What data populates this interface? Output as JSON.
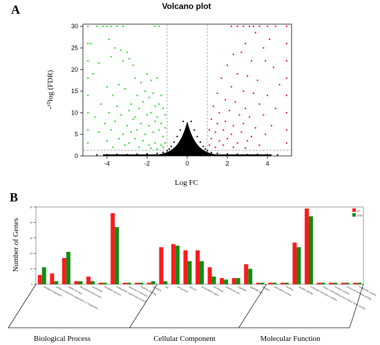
{
  "panel_a_label": "A",
  "panel_b_label": "B",
  "chart_data": [
    {
      "type": "scatter",
      "title": "Volcano plot",
      "xlabel": "Log FC",
      "ylabel": "-log10(FDR)",
      "ylabel_display": "-¹⁰log (FDR)",
      "xlim": [
        -5.2,
        5.2
      ],
      "ylim": [
        0,
        30.5
      ],
      "xticks": [
        -4,
        -2,
        0,
        2,
        4
      ],
      "xtick_labels": [
        "-4",
        "-2",
        "0",
        "2",
        "4"
      ],
      "yticks": [
        0,
        5,
        10,
        15,
        20,
        25,
        30
      ],
      "ytick_labels": [
        "0",
        "5",
        "10",
        "15",
        "20",
        "25",
        "30"
      ],
      "thresholds": {
        "logfc": [
          -1,
          1
        ],
        "neg_log10_fdr": 1.3
      },
      "series": [
        {
          "color": "#00e000",
          "points": [
            [
              -4.5,
              30
            ],
            [
              -4.2,
              30
            ],
            [
              -4.0,
              30
            ],
            [
              -3.8,
              30
            ],
            [
              -3.5,
              30
            ],
            [
              -3.2,
              30
            ],
            [
              -1.6,
              30
            ],
            [
              -1.4,
              30
            ],
            [
              -4.8,
              26
            ],
            [
              -3.9,
              27
            ],
            [
              -3.6,
              25
            ],
            [
              -3.3,
              24.5
            ],
            [
              -3.0,
              24
            ],
            [
              -3.2,
              22
            ],
            [
              -2.9,
              22.5
            ],
            [
              -3.8,
              23
            ],
            [
              -4.4,
              21.5
            ],
            [
              -4.7,
              19
            ],
            [
              -2.7,
              21
            ],
            [
              -2.6,
              18
            ],
            [
              -3.4,
              16.5
            ],
            [
              -2.3,
              17
            ],
            [
              -2.0,
              19
            ],
            [
              -1.8,
              17.5
            ],
            [
              -1.5,
              18
            ],
            [
              -4.0,
              16
            ],
            [
              -3.7,
              14
            ],
            [
              -3.1,
              15.5
            ],
            [
              -2.5,
              14
            ],
            [
              -2.1,
              15
            ],
            [
              -1.9,
              13.5
            ],
            [
              -1.7,
              14.5
            ],
            [
              -1.3,
              14
            ],
            [
              -4.3,
              12
            ],
            [
              -3.5,
              11.5
            ],
            [
              -2.8,
              12
            ],
            [
              -2.4,
              11
            ],
            [
              -2.2,
              12.5
            ],
            [
              -1.6,
              11.5
            ],
            [
              -1.4,
              12
            ],
            [
              -1.2,
              11
            ],
            [
              -4.6,
              9
            ],
            [
              -3.9,
              10
            ],
            [
              -3.3,
              9.5
            ],
            [
              -2.9,
              10.5
            ],
            [
              -2.6,
              9
            ],
            [
              -2.0,
              9.5
            ],
            [
              -1.8,
              10
            ],
            [
              -1.5,
              9
            ],
            [
              -1.1,
              9.5
            ],
            [
              -4.1,
              7.5
            ],
            [
              -3.6,
              8
            ],
            [
              -3.0,
              7
            ],
            [
              -2.7,
              8.5
            ],
            [
              -2.3,
              7.5
            ],
            [
              -1.9,
              7
            ],
            [
              -1.6,
              8
            ],
            [
              -1.3,
              7.5
            ],
            [
              -1.1,
              6.5
            ],
            [
              -4.4,
              5.5
            ],
            [
              -3.8,
              6
            ],
            [
              -3.2,
              5
            ],
            [
              -2.8,
              5.5
            ],
            [
              -2.5,
              6
            ],
            [
              -2.1,
              5
            ],
            [
              -1.7,
              5.5
            ],
            [
              -1.4,
              6
            ],
            [
              -1.2,
              4.5
            ],
            [
              -4.0,
              3.5
            ],
            [
              -3.4,
              4
            ],
            [
              -2.9,
              3
            ],
            [
              -2.6,
              4
            ],
            [
              -2.2,
              3.5
            ],
            [
              -1.9,
              2.5
            ],
            [
              -1.6,
              3
            ],
            [
              -1.3,
              2.5
            ],
            [
              -1.1,
              3
            ],
            [
              -3.7,
              2
            ],
            [
              -3.1,
              2.5
            ],
            [
              -2.4,
              2
            ],
            [
              -1.8,
              1.8
            ],
            [
              -1.5,
              1.6
            ],
            [
              -1.2,
              2
            ],
            [
              -4.95,
              30
            ],
            [
              -4.95,
              26
            ],
            [
              -4.95,
              22
            ],
            [
              -4.95,
              18
            ],
            [
              -4.95,
              14
            ],
            [
              -4.95,
              10
            ],
            [
              -4.95,
              6
            ],
            [
              -4.95,
              3
            ]
          ]
        },
        {
          "color": "#ff0000",
          "points": [
            [
              2.2,
              30
            ],
            [
              2.5,
              30
            ],
            [
              2.8,
              30
            ],
            [
              3.1,
              30
            ],
            [
              3.3,
              30
            ],
            [
              3.6,
              30
            ],
            [
              4.0,
              30
            ],
            [
              4.4,
              30
            ],
            [
              2.9,
              26
            ],
            [
              3.4,
              28.5
            ],
            [
              4.1,
              27
            ],
            [
              3.8,
              25
            ],
            [
              2.3,
              23.5
            ],
            [
              2.7,
              24
            ],
            [
              3.2,
              22
            ],
            [
              3.9,
              22
            ],
            [
              4.3,
              20.5
            ],
            [
              2.0,
              21
            ],
            [
              2.5,
              19
            ],
            [
              3.0,
              18.5
            ],
            [
              3.5,
              17.5
            ],
            [
              4.6,
              16.5
            ],
            [
              1.7,
              18
            ],
            [
              2.2,
              16
            ],
            [
              2.8,
              15
            ],
            [
              3.3,
              14.5
            ],
            [
              4.0,
              14
            ],
            [
              1.5,
              14.5
            ],
            [
              1.9,
              13
            ],
            [
              2.4,
              12.5
            ],
            [
              2.9,
              11
            ],
            [
              3.6,
              12
            ],
            [
              4.4,
              11
            ],
            [
              1.3,
              11.5
            ],
            [
              1.6,
              10
            ],
            [
              2.1,
              10.5
            ],
            [
              2.6,
              9.5
            ],
            [
              3.1,
              9
            ],
            [
              3.8,
              9.5
            ],
            [
              1.2,
              8.5
            ],
            [
              1.5,
              7.5
            ],
            [
              1.9,
              8
            ],
            [
              2.3,
              7
            ],
            [
              2.8,
              7.5
            ],
            [
              3.4,
              6.5
            ],
            [
              4.2,
              7
            ],
            [
              1.1,
              6
            ],
            [
              1.4,
              5.5
            ],
            [
              1.8,
              6
            ],
            [
              2.2,
              5
            ],
            [
              2.7,
              5.5
            ],
            [
              3.2,
              4.5
            ],
            [
              3.9,
              5
            ],
            [
              1.2,
              4
            ],
            [
              1.6,
              3.5
            ],
            [
              2.0,
              4
            ],
            [
              2.5,
              3
            ],
            [
              3.0,
              3.5
            ],
            [
              3.6,
              2.5
            ],
            [
              1.1,
              2.5
            ],
            [
              1.4,
              2
            ],
            [
              1.8,
              2.5
            ],
            [
              2.3,
              2
            ],
            [
              2.9,
              1.8
            ],
            [
              4.95,
              30
            ],
            [
              4.95,
              26
            ],
            [
              4.95,
              22
            ],
            [
              4.95,
              18
            ],
            [
              4.95,
              14
            ],
            [
              4.95,
              10
            ],
            [
              4.95,
              6
            ],
            [
              4.95,
              3
            ]
          ]
        },
        {
          "color": "#000000",
          "points": [
            [
              -0.2,
              8
            ],
            [
              0.2,
              8
            ],
            [
              -0.35,
              6
            ],
            [
              0.35,
              6
            ],
            [
              -0.5,
              4.5
            ],
            [
              0.5,
              4.5
            ],
            [
              -0.65,
              3.2
            ],
            [
              0.65,
              3.2
            ],
            [
              -0.8,
              2.2
            ],
            [
              0.8,
              2.2
            ],
            [
              -0.9,
              1.6
            ],
            [
              0.9,
              1.6
            ],
            [
              -1.0,
              1.2
            ],
            [
              1.0,
              1.2
            ],
            [
              -0.1,
              5
            ],
            [
              0.1,
              5
            ],
            [
              -0.3,
              3
            ],
            [
              0.3,
              3
            ],
            [
              -0.45,
              2
            ],
            [
              0.45,
              2
            ],
            [
              -0.6,
              1.2
            ],
            [
              0.6,
              1.2
            ],
            [
              -0.7,
              0.7
            ],
            [
              0.7,
              0.7
            ],
            [
              -1.2,
              0.8
            ],
            [
              1.2,
              0.8
            ],
            [
              -1.5,
              0.6
            ],
            [
              1.5,
              0.6
            ],
            [
              -2.0,
              0.5
            ],
            [
              2.0,
              0.5
            ],
            [
              -2.5,
              0.4
            ],
            [
              2.5,
              0.4
            ],
            [
              -3.0,
              0.3
            ],
            [
              3.0,
              0.3
            ],
            [
              -3.5,
              0.35
            ],
            [
              3.5,
              0.35
            ],
            [
              -4.0,
              0.3
            ],
            [
              4.0,
              0.3
            ],
            [
              -4.5,
              0.25
            ],
            [
              4.5,
              0.25
            ],
            [
              0,
              0.2
            ],
            [
              -0.25,
              0.5
            ],
            [
              0.25,
              0.5
            ]
          ]
        }
      ]
    },
    {
      "type": "bar",
      "ylabel": "Number of Genes",
      "ylim": [
        0,
        50
      ],
      "yticks": [
        0,
        10,
        20,
        30,
        40,
        50
      ],
      "ytick_labels": [
        "0",
        "10",
        "20",
        "30",
        "40",
        "50"
      ],
      "legend": {
        "position": "top-right"
      },
      "series": [
        {
          "name": "up",
          "color": "#ff1a1a",
          "values": [
            6,
            7,
            17,
            2,
            5,
            1,
            46,
            1,
            1,
            1,
            24,
            26,
            22,
            22,
            11,
            4,
            4,
            13,
            1,
            1,
            1,
            27,
            49,
            1,
            1,
            1,
            1
          ]
        },
        {
          "name": "down",
          "color": "#138a13",
          "values": [
            11,
            2,
            21,
            2,
            2,
            1,
            37,
            1,
            1,
            2,
            2,
            25,
            15,
            15,
            5,
            3,
            4,
            10,
            1,
            1,
            1,
            24,
            44,
            1,
            1,
            1,
            1
          ]
        }
      ],
      "categories": [
        "biological regulation",
        "cellular component organization or biogenesis",
        "cellular process",
        "developmental process",
        "localization",
        "metabolic process",
        "multicellular organismal process",
        "response to stimulus",
        "rhythmic process",
        "signaling",
        "cell",
        "cell junction",
        "cell part",
        "extracellular region",
        "membrane",
        "membrane part",
        "organelle",
        "organelle part",
        "synapse",
        "antioxidant activity",
        "binding",
        "catalytic activity",
        "molecular transducer activity",
        "nucleic acid binding transcription factor activity",
        "receptor activity",
        "structural molecule activity",
        "transporter activity"
      ],
      "groups": [
        {
          "label": "Biological Process"
        },
        {
          "label": "Cellular Component"
        },
        {
          "label": "Molecular Function"
        }
      ]
    }
  ]
}
